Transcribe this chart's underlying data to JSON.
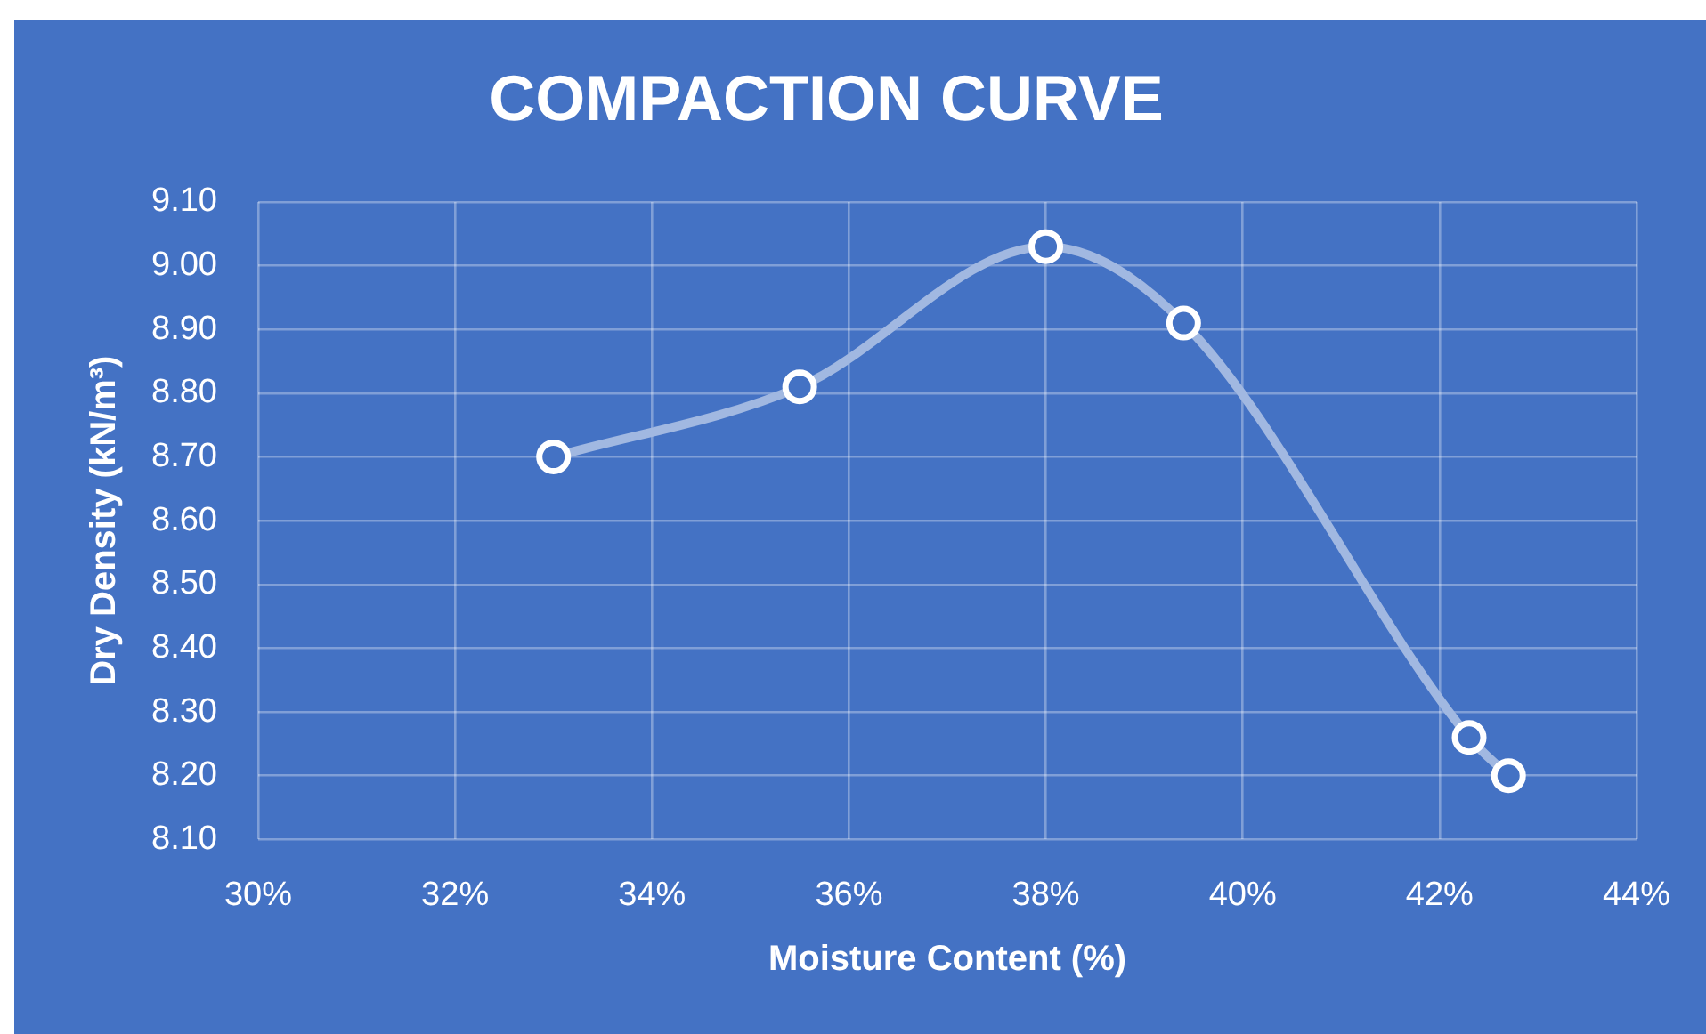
{
  "chart_data": {
    "type": "line",
    "title": "COMPACTION CURVE",
    "xlabel": "Moisture Content (%)",
    "ylabel": "Dry Density (kN/m³)",
    "x": [
      33.0,
      35.5,
      38.0,
      39.4,
      42.3,
      42.7
    ],
    "series": [
      {
        "color": "#a1b8e1",
        "values": [
          8.7,
          8.81,
          9.03,
          8.91,
          8.26,
          8.2
        ]
      }
    ],
    "xlim": [
      30,
      44
    ],
    "xticks": [
      {
        "value": 30,
        "label": "30%"
      },
      {
        "value": 32,
        "label": "32%"
      },
      {
        "value": 34,
        "label": "34%"
      },
      {
        "value": 36,
        "label": "36%"
      },
      {
        "value": 38,
        "label": "38%"
      },
      {
        "value": 40,
        "label": "40%"
      },
      {
        "value": 42,
        "label": "42%"
      },
      {
        "value": 44,
        "label": "44%"
      }
    ],
    "ylim": [
      8.1,
      9.1
    ],
    "yticks": [
      {
        "value": 8.1,
        "label": "8.10"
      },
      {
        "value": 8.2,
        "label": "8.20"
      },
      {
        "value": 8.3,
        "label": "8.30"
      },
      {
        "value": 8.4,
        "label": "8.40"
      },
      {
        "value": 8.5,
        "label": "8.50"
      },
      {
        "value": 8.6,
        "label": "8.60"
      },
      {
        "value": 8.7,
        "label": "8.70"
      },
      {
        "value": 8.8,
        "label": "8.80"
      },
      {
        "value": 8.9,
        "label": "8.90"
      },
      {
        "value": 9.0,
        "label": "9.00"
      },
      {
        "value": 9.1,
        "label": "9.10"
      }
    ],
    "grid": true,
    "marker": "circle",
    "line_style": "solid"
  }
}
